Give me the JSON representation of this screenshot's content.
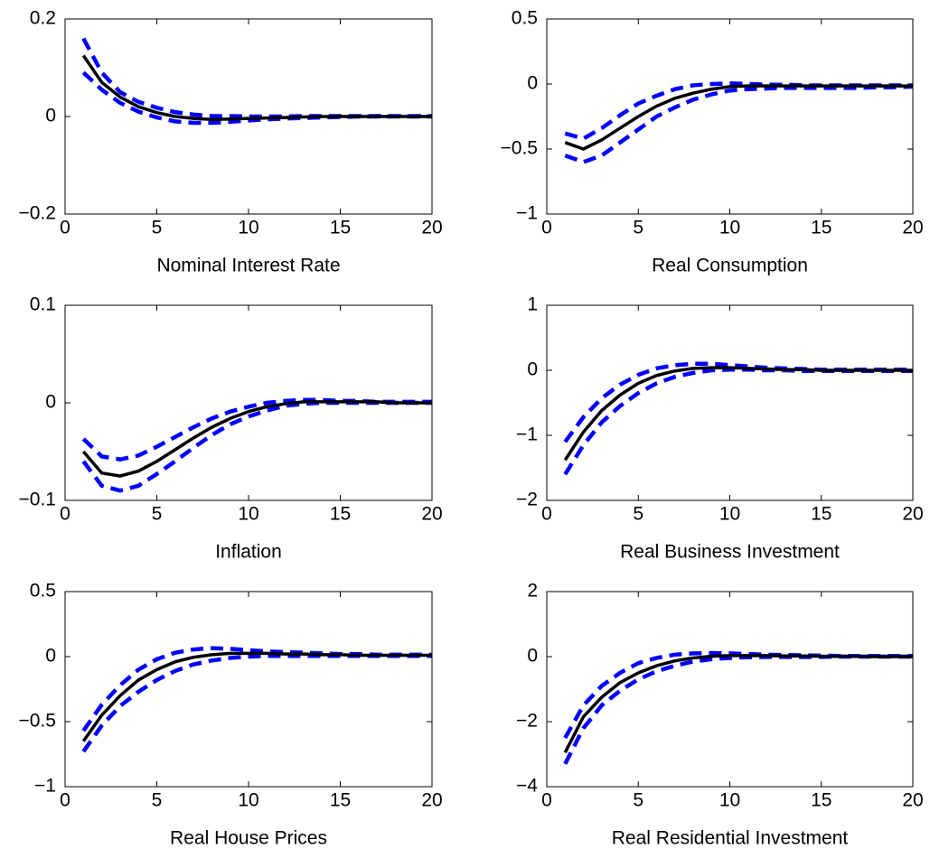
{
  "chart_data": [
    {
      "type": "line",
      "xlabel": "Nominal Interest Rate",
      "x": [
        1,
        2,
        3,
        4,
        5,
        6,
        7,
        8,
        9,
        10,
        11,
        12,
        13,
        14,
        15,
        16,
        17,
        18,
        19,
        20
      ],
      "xlim": [
        0,
        20
      ],
      "xticks": [
        0,
        5,
        10,
        15,
        20
      ],
      "ylim": [
        -0.2,
        0.2
      ],
      "yticks": [
        {
          "value": -0.2,
          "label": "−0.2"
        },
        0,
        0.2
      ],
      "series": [
        {
          "color": "#0000ff",
          "style": "dashed",
          "values": [
            0.09,
            0.055,
            0.028,
            0.01,
            -0.002,
            -0.01,
            -0.013,
            -0.013,
            -0.011,
            -0.008,
            -0.006,
            -0.004,
            -0.003,
            -0.002,
            -0.001,
            0,
            0,
            0,
            0,
            0
          ]
        },
        {
          "color": "#0000ff",
          "style": "dashed",
          "values": [
            0.16,
            0.09,
            0.05,
            0.03,
            0.018,
            0.009,
            0.004,
            0.001,
            0.001,
            0,
            0,
            0,
            0.001,
            0.001,
            0.001,
            0.001,
            0.001,
            0.001,
            0.001,
            0.001
          ]
        },
        {
          "color": "#000000",
          "style": "solid",
          "values": [
            0.125,
            0.07,
            0.04,
            0.02,
            0.008,
            0,
            -0.004,
            -0.006,
            -0.005,
            -0.004,
            -0.003,
            -0.002,
            -0.001,
            0,
            0,
            0,
            0,
            0,
            0,
            0
          ]
        }
      ]
    },
    {
      "type": "line",
      "xlabel": "Real Consumption",
      "x": [
        1,
        2,
        3,
        4,
        5,
        6,
        7,
        8,
        9,
        10,
        11,
        12,
        13,
        14,
        15,
        16,
        17,
        18,
        19,
        20
      ],
      "xlim": [
        0,
        20
      ],
      "xticks": [
        0,
        5,
        10,
        15,
        20
      ],
      "ylim": [
        -1,
        0.5
      ],
      "yticks": [
        {
          "value": -1,
          "label": "−1"
        },
        {
          "value": -0.5,
          "label": "−0.5"
        },
        0,
        0.5
      ],
      "series": [
        {
          "color": "#0000ff",
          "style": "dashed",
          "values": [
            -0.55,
            -0.6,
            -0.55,
            -0.45,
            -0.35,
            -0.25,
            -0.18,
            -0.12,
            -0.08,
            -0.05,
            -0.04,
            -0.035,
            -0.03,
            -0.03,
            -0.03,
            -0.03,
            -0.03,
            -0.025,
            -0.025,
            -0.02
          ]
        },
        {
          "color": "#0000ff",
          "style": "dashed",
          "values": [
            -0.38,
            -0.42,
            -0.34,
            -0.24,
            -0.15,
            -0.09,
            -0.04,
            -0.01,
            0,
            0.005,
            0,
            -0.005,
            -0.005,
            -0.01,
            -0.01,
            -0.01,
            -0.01,
            -0.01,
            -0.01,
            -0.01
          ]
        },
        {
          "color": "#000000",
          "style": "solid",
          "values": [
            -0.45,
            -0.5,
            -0.43,
            -0.34,
            -0.25,
            -0.17,
            -0.11,
            -0.07,
            -0.04,
            -0.02,
            -0.015,
            -0.015,
            -0.015,
            -0.015,
            -0.015,
            -0.015,
            -0.015,
            -0.015,
            -0.015,
            -0.015
          ]
        }
      ]
    },
    {
      "type": "line",
      "xlabel": "Inflation",
      "x": [
        1,
        2,
        3,
        4,
        5,
        6,
        7,
        8,
        9,
        10,
        11,
        12,
        13,
        14,
        15,
        16,
        17,
        18,
        19,
        20
      ],
      "xlim": [
        0,
        20
      ],
      "xticks": [
        0,
        5,
        10,
        15,
        20
      ],
      "ylim": [
        -0.1,
        0.1
      ],
      "yticks": [
        {
          "value": -0.1,
          "label": "−0.1"
        },
        0,
        0.1
      ],
      "series": [
        {
          "color": "#0000ff",
          "style": "dashed",
          "values": [
            -0.06,
            -0.085,
            -0.09,
            -0.085,
            -0.073,
            -0.06,
            -0.046,
            -0.033,
            -0.022,
            -0.014,
            -0.008,
            -0.003,
            -0.001,
            0,
            0,
            0,
            0,
            0,
            0,
            0
          ]
        },
        {
          "color": "#0000ff",
          "style": "dashed",
          "values": [
            -0.037,
            -0.055,
            -0.058,
            -0.054,
            -0.045,
            -0.035,
            -0.025,
            -0.016,
            -0.009,
            -0.004,
            0,
            0.002,
            0.003,
            0.003,
            0.002,
            0.002,
            0.001,
            0.001,
            0.001,
            0.001
          ]
        },
        {
          "color": "#000000",
          "style": "solid",
          "values": [
            -0.05,
            -0.072,
            -0.075,
            -0.07,
            -0.06,
            -0.048,
            -0.036,
            -0.025,
            -0.016,
            -0.009,
            -0.004,
            -0.001,
            0.001,
            0.001,
            0.001,
            0.001,
            0.001,
            0,
            0,
            0
          ]
        }
      ]
    },
    {
      "type": "line",
      "xlabel": "Real Business Investment",
      "x": [
        1,
        2,
        3,
        4,
        5,
        6,
        7,
        8,
        9,
        10,
        11,
        12,
        13,
        14,
        15,
        16,
        17,
        18,
        19,
        20
      ],
      "xlim": [
        0,
        20
      ],
      "xticks": [
        0,
        5,
        10,
        15,
        20
      ],
      "ylim": [
        -2,
        1
      ],
      "yticks": [
        {
          "value": -2,
          "label": "−2"
        },
        {
          "value": -1,
          "label": "−1"
        },
        0,
        1
      ],
      "series": [
        {
          "color": "#0000ff",
          "style": "dashed",
          "values": [
            -1.6,
            -1.15,
            -0.8,
            -0.55,
            -0.35,
            -0.2,
            -0.1,
            -0.04,
            0,
            0.01,
            0.01,
            0,
            0,
            -0.01,
            -0.01,
            -0.01,
            -0.01,
            -0.01,
            -0.01,
            -0.01
          ]
        },
        {
          "color": "#0000ff",
          "style": "dashed",
          "values": [
            -1.1,
            -0.72,
            -0.43,
            -0.22,
            -0.07,
            0.03,
            0.08,
            0.1,
            0.1,
            0.08,
            0.06,
            0.04,
            0.03,
            0.02,
            0.01,
            0.01,
            0.01,
            0.01,
            0.01,
            0.01
          ]
        },
        {
          "color": "#000000",
          "style": "solid",
          "values": [
            -1.38,
            -0.95,
            -0.62,
            -0.38,
            -0.2,
            -0.08,
            -0.01,
            0.03,
            0.04,
            0.04,
            0.03,
            0.02,
            0.01,
            0.01,
            0,
            0,
            0,
            0,
            0,
            0
          ]
        }
      ]
    },
    {
      "type": "line",
      "xlabel": "Real House Prices",
      "x": [
        1,
        2,
        3,
        4,
        5,
        6,
        7,
        8,
        9,
        10,
        11,
        12,
        13,
        14,
        15,
        16,
        17,
        18,
        19,
        20
      ],
      "xlim": [
        0,
        20
      ],
      "xticks": [
        0,
        5,
        10,
        15,
        20
      ],
      "ylim": [
        -1,
        0.5
      ],
      "yticks": [
        {
          "value": -1,
          "label": "−1"
        },
        {
          "value": -0.5,
          "label": "−0.5"
        },
        0,
        0.5
      ],
      "series": [
        {
          "color": "#0000ff",
          "style": "dashed",
          "values": [
            -0.73,
            -0.53,
            -0.38,
            -0.27,
            -0.18,
            -0.11,
            -0.06,
            -0.03,
            -0.01,
            0,
            0.005,
            0.005,
            0.005,
            0.005,
            0.005,
            0.005,
            0.005,
            0.005,
            0.005,
            0.005
          ]
        },
        {
          "color": "#0000ff",
          "style": "dashed",
          "values": [
            -0.57,
            -0.37,
            -0.22,
            -0.1,
            -0.02,
            0.03,
            0.055,
            0.065,
            0.06,
            0.05,
            0.04,
            0.035,
            0.03,
            0.025,
            0.02,
            0.02,
            0.015,
            0.015,
            0.015,
            0.015
          ]
        },
        {
          "color": "#000000",
          "style": "solid",
          "values": [
            -0.65,
            -0.45,
            -0.3,
            -0.18,
            -0.1,
            -0.04,
            -0.005,
            0.015,
            0.025,
            0.025,
            0.025,
            0.02,
            0.02,
            0.015,
            0.015,
            0.01,
            0.01,
            0.01,
            0.01,
            0.01
          ]
        }
      ]
    },
    {
      "type": "line",
      "xlabel": "Real Residential Investment",
      "x": [
        1,
        2,
        3,
        4,
        5,
        6,
        7,
        8,
        9,
        10,
        11,
        12,
        13,
        14,
        15,
        16,
        17,
        18,
        19,
        20
      ],
      "xlim": [
        0,
        20
      ],
      "xticks": [
        0,
        5,
        10,
        15,
        20
      ],
      "ylim": [
        -4,
        2
      ],
      "yticks": [
        {
          "value": -4,
          "label": "−4"
        },
        {
          "value": -2,
          "label": "−2"
        },
        0,
        2
      ],
      "series": [
        {
          "color": "#0000ff",
          "style": "dashed",
          "values": [
            -3.3,
            -2.2,
            -1.5,
            -1.05,
            -0.7,
            -0.45,
            -0.28,
            -0.15,
            -0.08,
            -0.04,
            -0.02,
            -0.01,
            -0.01,
            -0.01,
            -0.01,
            0,
            0,
            0,
            0,
            0
          ]
        },
        {
          "color": "#0000ff",
          "style": "dashed",
          "values": [
            -2.5,
            -1.5,
            -0.9,
            -0.5,
            -0.2,
            -0.04,
            0.06,
            0.1,
            0.11,
            0.1,
            0.08,
            0.06,
            0.05,
            0.04,
            0.03,
            0.02,
            0.02,
            0.02,
            0.02,
            0.02
          ]
        },
        {
          "color": "#000000",
          "style": "solid",
          "values": [
            -2.95,
            -1.85,
            -1.25,
            -0.8,
            -0.5,
            -0.28,
            -0.13,
            -0.04,
            0.01,
            0.03,
            0.03,
            0.03,
            0.02,
            0.02,
            0.01,
            0.01,
            0.01,
            0,
            0,
            0
          ]
        }
      ]
    }
  ]
}
